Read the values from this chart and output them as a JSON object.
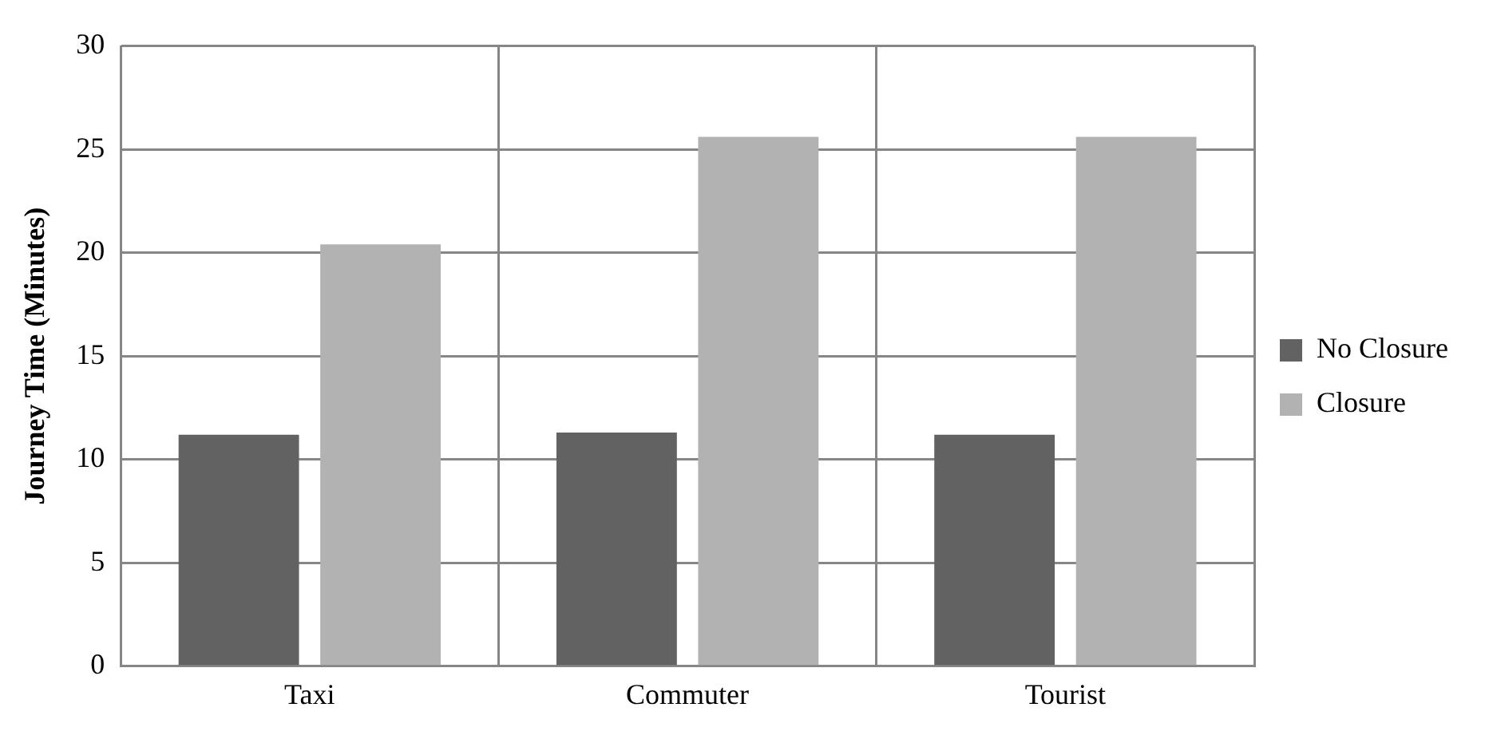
{
  "chart_data": {
    "type": "bar",
    "ylabel": "Journey Time (Minutes)",
    "categories": [
      "Taxi",
      "Commuter",
      "Tourist"
    ],
    "series": [
      {
        "name": "No Closure",
        "color": "#626262",
        "values": [
          11.2,
          11.3,
          11.2
        ]
      },
      {
        "name": "Closure",
        "color": "#b2b2b2",
        "values": [
          20.4,
          25.6,
          25.6
        ]
      }
    ],
    "ylim": [
      0,
      30
    ],
    "yticks": [
      0,
      5,
      10,
      15,
      20,
      25,
      30
    ],
    "grid": true,
    "legend": "right"
  }
}
